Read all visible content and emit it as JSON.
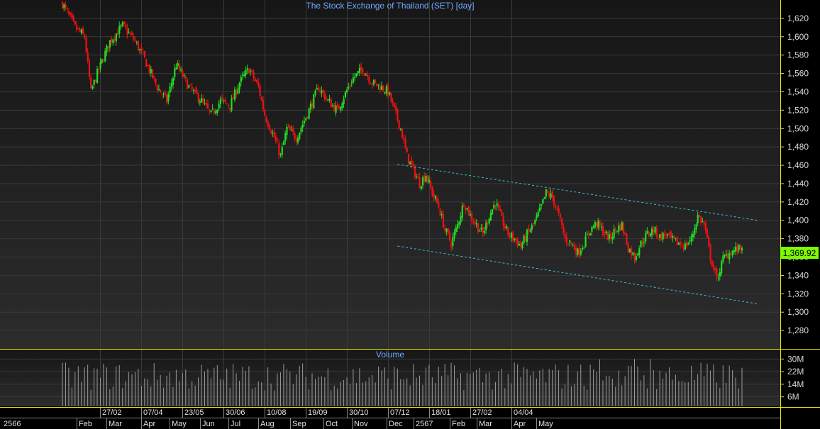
{
  "title": "The Stock Exchange of Thailand (SET) [day]",
  "volume_title": "Volume",
  "last_price_label": "1,369.92",
  "colors": {
    "background": "#000000",
    "panel_gradient_top": "#161616",
    "panel_gradient_bottom": "#2c2c2c",
    "grid": "#3a3a3a",
    "up_candle": "#22dd22",
    "down_candle": "#ee1111",
    "trendline": "#33c6d6",
    "volume_bar": "#9a9a9a",
    "separator": "#e8e800",
    "title": "#6fa8ff",
    "last_price_bg": "#7cfc00"
  },
  "chart_data": [
    {
      "type": "candlestick",
      "title": "The Stock Exchange of Thailand (SET) [day]",
      "ylim": [
        1260,
        1640
      ],
      "yticks": [
        1620,
        1600,
        1580,
        1560,
        1540,
        1520,
        1500,
        1480,
        1460,
        1440,
        1420,
        1400,
        1380,
        1360,
        1340,
        1320,
        1300,
        1280
      ],
      "ytick_labels": [
        "1,620",
        "1,600",
        "1,580",
        "1,560",
        "1,540",
        "1,520",
        "1,500",
        "1,480",
        "1,460",
        "1,440",
        "1,420",
        "1,400",
        "1,380",
        "1,360",
        "1,340",
        "1,320",
        "1,300",
        "1,280"
      ],
      "last_close": 1369.92,
      "close_path": [
        [
          0,
          1636
        ],
        [
          8,
          1610
        ],
        [
          14,
          1600
        ],
        [
          18,
          1540
        ],
        [
          22,
          1560
        ],
        [
          30,
          1595
        ],
        [
          38,
          1612
        ],
        [
          46,
          1595
        ],
        [
          52,
          1575
        ],
        [
          60,
          1545
        ],
        [
          66,
          1530
        ],
        [
          72,
          1570
        ],
        [
          80,
          1545
        ],
        [
          88,
          1530
        ],
        [
          94,
          1515
        ],
        [
          100,
          1530
        ],
        [
          106,
          1525
        ],
        [
          112,
          1550
        ],
        [
          118,
          1565
        ],
        [
          124,
          1545
        ],
        [
          128,
          1515
        ],
        [
          134,
          1490
        ],
        [
          138,
          1470
        ],
        [
          142,
          1500
        ],
        [
          148,
          1490
        ],
        [
          152,
          1505
        ],
        [
          156,
          1520
        ],
        [
          162,
          1545
        ],
        [
          168,
          1530
        ],
        [
          174,
          1520
        ],
        [
          178,
          1535
        ],
        [
          184,
          1555
        ],
        [
          190,
          1565
        ],
        [
          196,
          1550
        ],
        [
          202,
          1545
        ],
        [
          206,
          1540
        ],
        [
          210,
          1520
        ],
        [
          214,
          1500
        ],
        [
          218,
          1470
        ],
        [
          222,
          1455
        ],
        [
          226,
          1440
        ],
        [
          230,
          1450
        ],
        [
          234,
          1430
        ],
        [
          238,
          1415
        ],
        [
          242,
          1390
        ],
        [
          246,
          1375
        ],
        [
          250,
          1395
        ],
        [
          254,
          1420
        ],
        [
          258,
          1405
        ],
        [
          262,
          1395
        ],
        [
          266,
          1385
        ],
        [
          270,
          1405
        ],
        [
          274,
          1420
        ],
        [
          278,
          1400
        ],
        [
          282,
          1385
        ],
        [
          286,
          1380
        ],
        [
          290,
          1372
        ],
        [
          294,
          1385
        ],
        [
          298,
          1395
        ],
        [
          302,
          1410
        ],
        [
          306,
          1430
        ],
        [
          310,
          1425
        ],
        [
          314,
          1405
        ],
        [
          318,
          1380
        ],
        [
          322,
          1375
        ],
        [
          326,
          1365
        ],
        [
          330,
          1375
        ],
        [
          334,
          1390
        ],
        [
          338,
          1397
        ],
        [
          342,
          1388
        ],
        [
          346,
          1380
        ],
        [
          350,
          1390
        ],
        [
          354,
          1395
        ],
        [
          358,
          1370
        ],
        [
          362,
          1360
        ],
        [
          366,
          1375
        ],
        [
          370,
          1385
        ],
        [
          374,
          1390
        ],
        [
          378,
          1382
        ],
        [
          382,
          1385
        ],
        [
          386,
          1378
        ],
        [
          390,
          1375
        ],
        [
          394,
          1372
        ],
        [
          398,
          1380
        ],
        [
          402,
          1405
        ],
        [
          406,
          1395
        ],
        [
          410,
          1360
        ],
        [
          414,
          1335
        ],
        [
          418,
          1358
        ],
        [
          422,
          1365
        ],
        [
          426,
          1368
        ],
        [
          430,
          1369.92
        ]
      ],
      "trendlines": [
        {
          "x": [
            212,
            440
          ],
          "y": [
            1461,
            1400
          ]
        },
        {
          "x": [
            212,
            440
          ],
          "y": [
            1372,
            1309
          ]
        }
      ],
      "date_labels": [
        "27/02",
        "07/04",
        "23/05",
        "30/06",
        "10/08",
        "19/09",
        "30/10",
        "07/12",
        "18/01",
        "27/02",
        "04/04"
      ],
      "date_label_index": [
        24,
        50,
        76,
        102,
        128,
        154,
        180,
        206,
        232,
        258,
        284
      ],
      "month_labels": [
        "2566",
        "Feb",
        "Mar",
        "Apr",
        "May",
        "Jun",
        "Jul",
        "Aug",
        "Sep",
        "Oct",
        "Nov",
        "Dec",
        "2567",
        "Feb",
        "Mar",
        "Apr",
        "May"
      ],
      "month_label_index": [
        0,
        9,
        28,
        50,
        68,
        87,
        105,
        124,
        144,
        165,
        183,
        205,
        222,
        245,
        262,
        284,
        300
      ]
    },
    {
      "type": "bar",
      "title": "Volume",
      "ylim": [
        0,
        36
      ],
      "yticks": [
        30,
        22,
        14,
        6
      ],
      "ytick_labels": [
        "30M",
        "22M",
        "14M",
        "6M"
      ],
      "unit": "M",
      "typical_range": [
        10,
        28
      ],
      "peak": 30
    }
  ]
}
